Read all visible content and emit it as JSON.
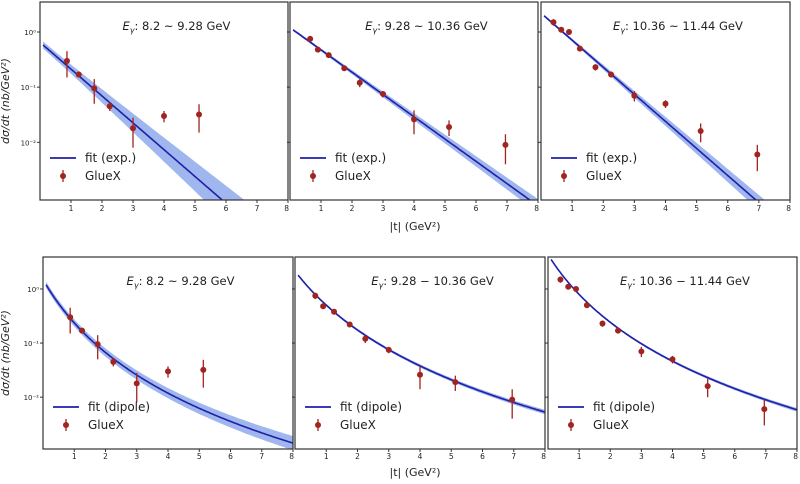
{
  "chart_data": [
    {
      "type": "scatter",
      "row": "exp",
      "ylabel": "dσ/dt (nb/GeV²)",
      "xlabel": "|t| (GeV²)",
      "xlim": [
        0,
        8
      ],
      "ylim": [
        0.0009,
        3.5
      ],
      "yscale": "log",
      "xticks": [
        "1",
        "2",
        "3",
        "4",
        "5",
        "6",
        "7",
        "8"
      ],
      "yticks": [
        {
          "value": 1,
          "label": "10⁰"
        },
        {
          "value": 0.1,
          "label": "10⁻¹"
        },
        {
          "value": 0.01,
          "label": "10⁻²"
        }
      ],
      "legend_placement": "lower-left",
      "panels": [
        {
          "title_prefix": "E",
          "title_sub": "γ",
          "title": ": 8.2 ~ 9.28 GeV",
          "fit": {
            "name": "fit (exp.)",
            "model": "exp",
            "A": 0.65,
            "b": 1.12,
            "sigma_lnA": 0.15,
            "sigma_b": 0.12
          },
          "data": {
            "name": "GlueX",
            "x": [
              0.87,
              1.25,
              1.75,
              2.25,
              3.0,
              4.0,
              5.13
            ],
            "y": [
              0.3,
              0.17,
              0.095,
              0.045,
              0.018,
              0.03,
              0.032
            ],
            "yerr": [
              0.15,
              0.02,
              0.045,
              0.008,
              0.01,
              0.007,
              0.017
            ]
          }
        },
        {
          "title_prefix": "E",
          "title_sub": "γ",
          "title": ": 9.28 ~ 10.36 GeV",
          "fit": {
            "name": "fit (exp.)",
            "model": "exp",
            "A": 1.2,
            "b": 0.93,
            "sigma_lnA": 0.05,
            "sigma_b": 0.035
          },
          "data": {
            "name": "GlueX",
            "x": [
              0.65,
              0.9,
              1.25,
              1.75,
              2.25,
              3.0,
              4.0,
              5.13,
              6.95
            ],
            "y": [
              0.75,
              0.48,
              0.38,
              0.22,
              0.12,
              0.075,
              0.026,
              0.019,
              0.009
            ],
            "yerr": [
              0.1,
              0.05,
              0.03,
              0.02,
              0.02,
              0.01,
              0.012,
              0.006,
              0.005
            ]
          }
        },
        {
          "title_prefix": "E",
          "title_sub": "γ",
          "title": ": 10.36 ~ 11.44 GeV",
          "fit": {
            "name": "fit (exp.)",
            "model": "exp",
            "A": 2.2,
            "b": 1.13,
            "sigma_lnA": 0.05,
            "sigma_b": 0.045
          },
          "data": {
            "name": "GlueX",
            "x": [
              0.4,
              0.65,
              0.9,
              1.25,
              1.75,
              2.25,
              3.0,
              4.0,
              5.13,
              6.95
            ],
            "y": [
              1.5,
              1.1,
              1.0,
              0.5,
              0.23,
              0.17,
              0.07,
              0.05,
              0.016,
              0.006
            ],
            "yerr": [
              0.2,
              0.1,
              0.08,
              0.04,
              0.03,
              0.02,
              0.015,
              0.008,
              0.006,
              0.003
            ]
          }
        }
      ]
    },
    {
      "type": "scatter",
      "row": "dipole",
      "ylabel": "dσ/dt (nb/GeV²)",
      "xlabel": "|t| (GeV²)",
      "xlim": [
        0,
        8
      ],
      "ylim": [
        0.0011,
        3.9
      ],
      "yscale": "log",
      "xticks": [
        "1",
        "2",
        "3",
        "4",
        "5",
        "6",
        "7",
        "8"
      ],
      "yticks": [
        {
          "value": 1,
          "label": "10⁰"
        },
        {
          "value": 0.1,
          "label": "10⁻¹"
        },
        {
          "value": 0.01,
          "label": "10⁻²"
        }
      ],
      "legend_placement": "lower-left",
      "panels": [
        {
          "title_prefix": "E",
          "title_sub": "γ",
          "title": ": 8.2 ~ 9.28 GeV",
          "fit": {
            "name": "fit (dipole)",
            "model": "dipole",
            "A": 1.5,
            "m2": 1.7,
            "sigma_rel": 0.35
          },
          "data": {
            "name": "GlueX",
            "x": [
              0.87,
              1.25,
              1.75,
              2.25,
              3.0,
              4.0,
              5.13
            ],
            "y": [
              0.3,
              0.17,
              0.095,
              0.045,
              0.018,
              0.03,
              0.032
            ],
            "yerr": [
              0.15,
              0.02,
              0.045,
              0.008,
              0.01,
              0.007,
              0.017
            ]
          }
        },
        {
          "title_prefix": "E",
          "title_sub": "γ",
          "title": ": 9.28 − 10.36 GeV",
          "fit": {
            "name": "fit (dipole)",
            "model": "dipole",
            "A": 2.13,
            "m2": 2.3,
            "sigma_rel": 0.1
          },
          "data": {
            "name": "GlueX",
            "x": [
              0.65,
              0.9,
              1.25,
              1.75,
              2.25,
              3.0,
              4.0,
              5.13,
              6.95
            ],
            "y": [
              0.75,
              0.48,
              0.38,
              0.22,
              0.12,
              0.075,
              0.026,
              0.019,
              0.009
            ],
            "yerr": [
              0.1,
              0.05,
              0.03,
              0.02,
              0.02,
              0.01,
              0.012,
              0.006,
              0.005
            ]
          }
        },
        {
          "title_prefix": "E",
          "title_sub": "γ",
          "title": ": 10.36 − 11.44 GeV",
          "fit": {
            "name": "fit (dipole)",
            "model": "dipole",
            "A": 4.3,
            "m2": 1.9,
            "sigma_rel": 0.08
          },
          "data": {
            "name": "GlueX",
            "x": [
              0.4,
              0.65,
              0.9,
              1.25,
              1.75,
              2.25,
              3.0,
              4.0,
              5.13,
              6.95
            ],
            "y": [
              1.5,
              1.1,
              1.0,
              0.5,
              0.23,
              0.17,
              0.07,
              0.05,
              0.016,
              0.006
            ],
            "yerr": [
              0.2,
              0.1,
              0.08,
              0.04,
              0.03,
              0.02,
              0.015,
              0.008,
              0.006,
              0.003
            ]
          }
        }
      ]
    }
  ],
  "colors": {
    "fit_line": "#1f1fa8",
    "band": "#7f9de8",
    "data": "#a0241f",
    "frame": "#333333"
  }
}
